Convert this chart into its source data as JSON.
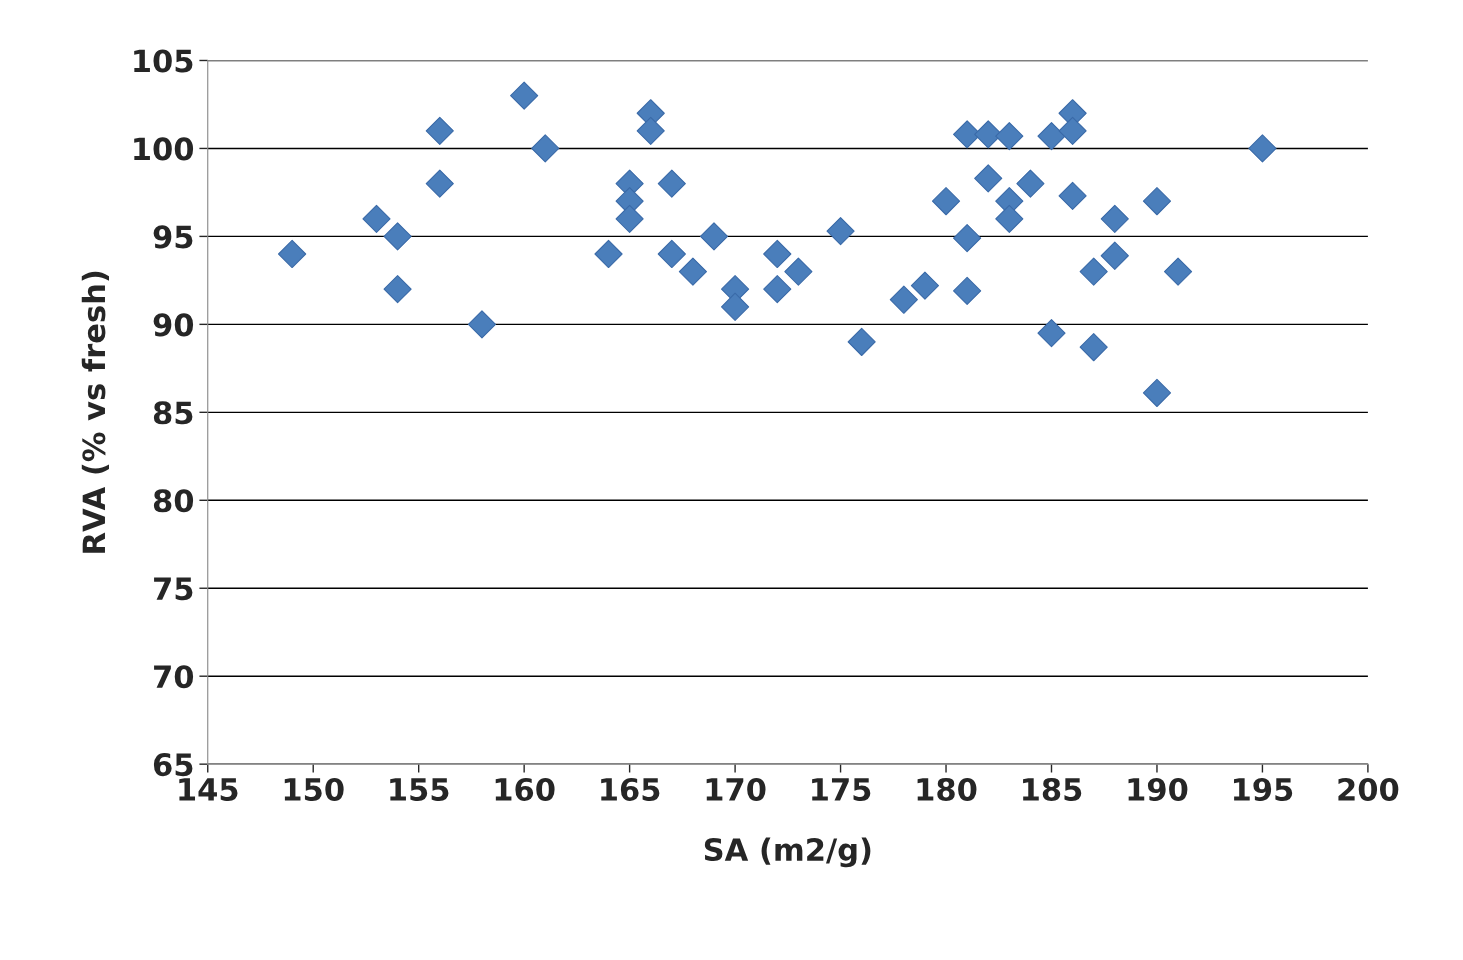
{
  "chart_data": {
    "type": "scatter",
    "xlabel": "SA (m2/g)",
    "ylabel": "RVA (% vs fresh)",
    "xlim": [
      145,
      200
    ],
    "xticks": [
      145,
      150,
      155,
      160,
      165,
      170,
      175,
      180,
      185,
      190,
      195,
      200
    ],
    "ylim": [
      65,
      105
    ],
    "yticks": [
      65,
      70,
      75,
      80,
      85,
      90,
      95,
      100,
      105
    ],
    "grid": "y",
    "marker": "diamond",
    "series": [
      {
        "color": "#4a7ebb",
        "x": [
          149,
          153,
          154,
          154,
          156,
          156,
          158,
          160,
          161,
          164,
          165,
          165,
          165,
          166,
          166,
          167,
          167,
          168,
          169,
          170,
          170,
          172,
          172,
          173,
          175,
          176,
          178,
          179,
          180,
          181,
          181,
          181,
          182,
          182,
          183,
          183,
          183,
          184,
          185,
          185,
          186,
          186,
          186,
          187,
          187,
          188,
          188,
          190,
          190,
          191,
          195
        ],
        "values": [
          94,
          96,
          95,
          92,
          101,
          98,
          90,
          103,
          100,
          94,
          98,
          97,
          96,
          102,
          101,
          98,
          94,
          93,
          95,
          92,
          91,
          94,
          92,
          93,
          95.3,
          89,
          91.4,
          92.2,
          97,
          100.8,
          94.9,
          91.9,
          100.8,
          98.3,
          100.7,
          97,
          96,
          98,
          100.7,
          89.5,
          102,
          101,
          97.3,
          93,
          88.7,
          96,
          93.9,
          97,
          86.1,
          93,
          100
        ]
      }
    ]
  }
}
